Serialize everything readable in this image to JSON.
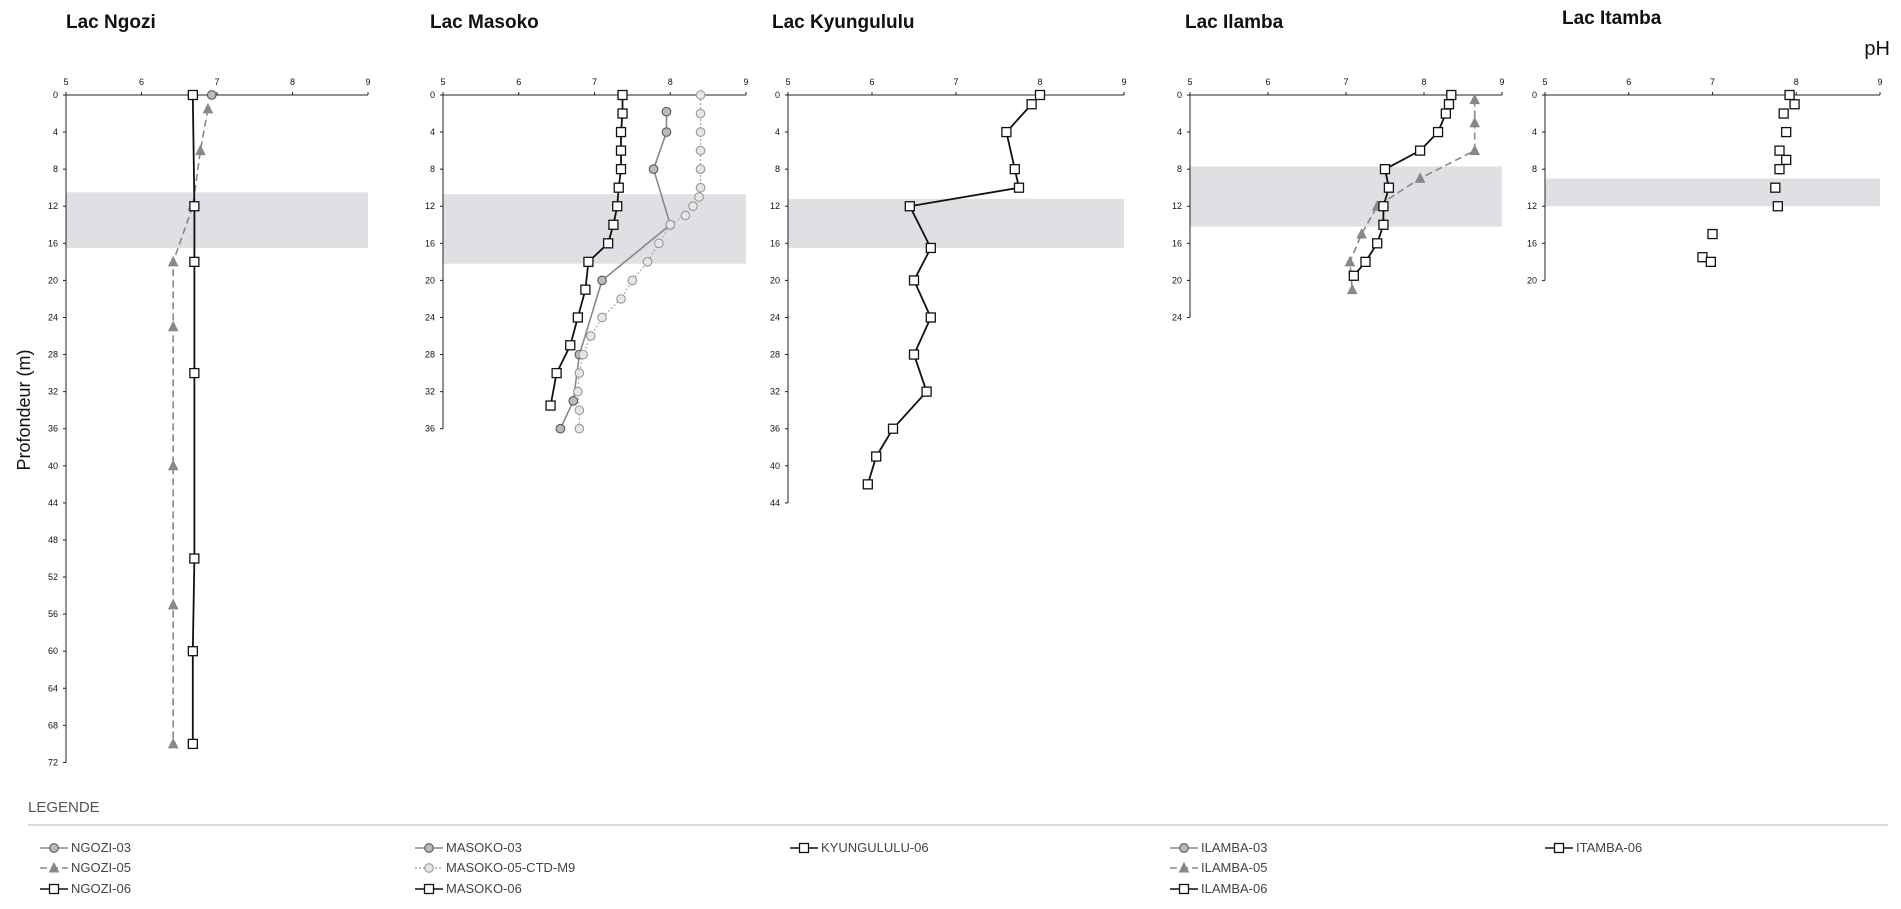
{
  "chart_meta": {
    "ylabel": "Profondeur (m)",
    "xunit_label": "pH",
    "legend_title": "LEGENDE",
    "xlim": [
      5,
      9
    ],
    "xticks": [
      5,
      6,
      7,
      8,
      9
    ],
    "colors": {
      "black": "#111111",
      "grey": "#888888",
      "light_grey": "#aaaaaa",
      "band": "#e0e0e4"
    }
  },
  "chart_data": [
    {
      "type": "line",
      "title": "Lac Ngozi",
      "xlabel": "pH",
      "ylabel": "Profondeur (m)",
      "xlim": [
        5,
        9
      ],
      "ylim": [
        0,
        72
      ],
      "yticks": [
        0,
        4,
        8,
        12,
        16,
        20,
        24,
        28,
        32,
        36,
        40,
        44,
        48,
        52,
        56,
        60,
        64,
        68,
        72
      ],
      "band": [
        10.5,
        16.5
      ],
      "series": [
        {
          "name": "NGOZI-03",
          "style": "solid-grey-circle",
          "points": [
            [
              6.93,
              0
            ]
          ]
        },
        {
          "name": "NGOZI-05",
          "style": "dashed-grey-triangle",
          "points": [
            [
              6.88,
              1.5
            ],
            [
              6.78,
              6
            ],
            [
              6.68,
              12
            ],
            [
              6.42,
              18
            ],
            [
              6.42,
              25
            ],
            [
              6.42,
              40
            ],
            [
              6.42,
              55
            ],
            [
              6.42,
              70
            ]
          ]
        },
        {
          "name": "NGOZI-06",
          "style": "solid-black-square",
          "points": [
            [
              6.68,
              0
            ],
            [
              6.7,
              12
            ],
            [
              6.7,
              18
            ],
            [
              6.7,
              30
            ],
            [
              6.7,
              50
            ],
            [
              6.68,
              60
            ],
            [
              6.68,
              70
            ]
          ]
        }
      ]
    },
    {
      "type": "line",
      "title": "Lac Masoko",
      "xlabel": "pH",
      "ylabel": "Profondeur (m)",
      "xlim": [
        5,
        9
      ],
      "ylim": [
        0,
        36
      ],
      "yticks": [
        0,
        4,
        8,
        12,
        16,
        20,
        24,
        28,
        32,
        36
      ],
      "band": [
        10.7,
        18.2
      ],
      "series": [
        {
          "name": "MASOKO-03",
          "style": "solid-grey-circle",
          "points": [
            [
              7.95,
              1.8
            ],
            [
              7.95,
              4
            ],
            [
              7.78,
              8
            ],
            [
              8.0,
              14
            ],
            [
              7.1,
              20
            ],
            [
              6.8,
              28
            ],
            [
              6.72,
              33
            ],
            [
              6.55,
              36
            ]
          ]
        },
        {
          "name": "MASOKO-05-CTD-M9",
          "style": "dotted-lightgrey-circle",
          "points": [
            [
              8.4,
              0
            ],
            [
              8.4,
              2
            ],
            [
              8.4,
              4
            ],
            [
              8.4,
              6
            ],
            [
              8.4,
              8
            ],
            [
              8.4,
              10
            ],
            [
              8.38,
              11
            ],
            [
              8.3,
              12
            ],
            [
              8.2,
              13
            ],
            [
              8.0,
              14
            ],
            [
              7.85,
              16
            ],
            [
              7.7,
              18
            ],
            [
              7.5,
              20
            ],
            [
              7.35,
              22
            ],
            [
              7.1,
              24
            ],
            [
              6.95,
              26
            ],
            [
              6.85,
              28
            ],
            [
              6.8,
              30
            ],
            [
              6.78,
              32
            ],
            [
              6.8,
              34
            ],
            [
              6.8,
              36
            ]
          ]
        },
        {
          "name": "MASOKO-06",
          "style": "solid-black-square",
          "points": [
            [
              7.37,
              0
            ],
            [
              7.37,
              2
            ],
            [
              7.35,
              4
            ],
            [
              7.35,
              6
            ],
            [
              7.35,
              8
            ],
            [
              7.32,
              10
            ],
            [
              7.3,
              12
            ],
            [
              7.25,
              14
            ],
            [
              7.18,
              16
            ],
            [
              6.92,
              18
            ],
            [
              6.88,
              21
            ],
            [
              6.78,
              24
            ],
            [
              6.68,
              27
            ],
            [
              6.5,
              30
            ],
            [
              6.42,
              33.5
            ]
          ]
        }
      ]
    },
    {
      "type": "line",
      "title": "Lac Kyungululu",
      "xlabel": "pH",
      "ylabel": "Profondeur (m)",
      "xlim": [
        5,
        9
      ],
      "ylim": [
        0,
        44
      ],
      "yticks": [
        0,
        4,
        8,
        12,
        16,
        20,
        24,
        28,
        32,
        36,
        40,
        44
      ],
      "band": [
        11.2,
        16.5
      ],
      "series": [
        {
          "name": "KYUNGULULU-06",
          "style": "solid-black-square",
          "points": [
            [
              8.0,
              0
            ],
            [
              7.9,
              1
            ],
            [
              7.6,
              4
            ],
            [
              7.7,
              8
            ],
            [
              7.75,
              10
            ],
            [
              6.45,
              12
            ],
            [
              6.7,
              16.5
            ],
            [
              6.5,
              20
            ],
            [
              6.7,
              24
            ],
            [
              6.5,
              28
            ],
            [
              6.65,
              32
            ],
            [
              6.25,
              36
            ],
            [
              6.05,
              39
            ],
            [
              5.95,
              42
            ]
          ]
        }
      ]
    },
    {
      "type": "line",
      "title": "Lac Ilamba",
      "xlabel": "pH",
      "ylabel": "Profondeur (m)",
      "xlim": [
        5,
        9
      ],
      "ylim": [
        0,
        24
      ],
      "yticks": [
        0,
        4,
        8,
        12,
        16,
        20,
        24
      ],
      "band": [
        7.7,
        14.2
      ],
      "series": [
        {
          "name": "ILAMBA-03",
          "style": "solid-grey-circle",
          "points": []
        },
        {
          "name": "ILAMBA-05",
          "style": "dashed-grey-triangle",
          "points": [
            [
              8.65,
              0.5
            ],
            [
              8.65,
              3
            ],
            [
              8.65,
              6
            ],
            [
              7.95,
              9
            ],
            [
              7.4,
              12
            ],
            [
              7.2,
              15
            ],
            [
              7.05,
              18
            ],
            [
              7.08,
              21
            ]
          ]
        },
        {
          "name": "ILAMBA-06",
          "style": "solid-black-square",
          "points": [
            [
              8.35,
              0
            ],
            [
              8.32,
              1
            ],
            [
              8.28,
              2
            ],
            [
              8.18,
              4
            ],
            [
              7.95,
              6
            ],
            [
              7.5,
              8
            ],
            [
              7.55,
              10
            ],
            [
              7.48,
              12
            ],
            [
              7.48,
              14
            ],
            [
              7.4,
              16
            ],
            [
              7.25,
              18
            ],
            [
              7.1,
              19.5
            ]
          ]
        }
      ]
    },
    {
      "type": "scatter",
      "title": "Lac Itamba",
      "xlabel": "pH",
      "ylabel": "Profondeur (m)",
      "xlim": [
        5,
        9
      ],
      "ylim": [
        0,
        20
      ],
      "yticks": [
        0,
        4,
        8,
        12,
        16,
        20
      ],
      "band": [
        9,
        12
      ],
      "series": [
        {
          "name": "ITAMBA-06",
          "style": "black-square-markers",
          "points": [
            [
              7.92,
              0
            ],
            [
              7.98,
              1
            ],
            [
              7.85,
              2
            ],
            [
              7.88,
              4
            ],
            [
              7.8,
              6
            ],
            [
              7.88,
              7
            ],
            [
              7.8,
              8
            ],
            [
              7.75,
              10
            ],
            [
              7.78,
              12
            ],
            [
              7.0,
              15
            ],
            [
              6.88,
              17.5
            ],
            [
              6.98,
              18
            ]
          ]
        }
      ]
    }
  ],
  "legend": {
    "title": "LEGENDE",
    "columns": [
      [
        {
          "label": "NGOZI-03",
          "style": "solid-grey-circle"
        },
        {
          "label": "NGOZI-05",
          "style": "dashed-grey-triangle"
        },
        {
          "label": "NGOZI-06",
          "style": "solid-black-square"
        }
      ],
      [
        {
          "label": "MASOKO-03",
          "style": "solid-grey-circle"
        },
        {
          "label": "MASOKO-05-CTD-M9",
          "style": "dotted-lightgrey-circle"
        },
        {
          "label": "MASOKO-06",
          "style": "solid-black-square"
        }
      ],
      [
        {
          "label": "KYUNGULULU-06",
          "style": "solid-black-square"
        }
      ],
      [
        {
          "label": "ILAMBA-03",
          "style": "solid-grey-circle"
        },
        {
          "label": "ILAMBA-05",
          "style": "dashed-grey-triangle"
        },
        {
          "label": "ILAMBA-06",
          "style": "solid-black-square"
        }
      ],
      [
        {
          "label": "ITAMBA-06",
          "style": "solid-black-square"
        }
      ]
    ]
  }
}
